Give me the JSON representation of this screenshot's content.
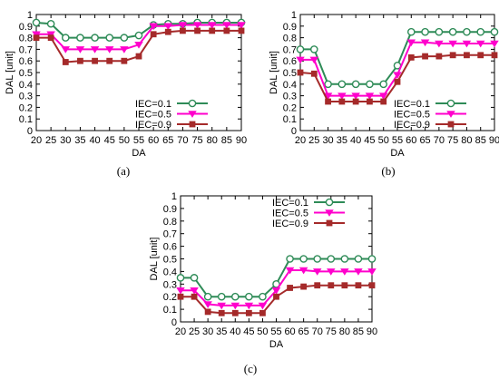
{
  "chart_data": [
    {
      "type": "line",
      "panel_label": "(a)",
      "xlabel": "DA",
      "ylabel": "DAL [unit]",
      "xlim": [
        20,
        90
      ],
      "ylim": [
        0,
        1
      ],
      "x_ticks": [
        "20",
        "25",
        "30",
        "35",
        "40",
        "45",
        "50",
        "55",
        "60",
        "65",
        "70",
        "75",
        "80",
        "85",
        "90"
      ],
      "y_ticks": [
        "0",
        "0.1",
        "0.2",
        "0.3",
        "0.4",
        "0.5",
        "0.6",
        "0.7",
        "0.8",
        "0.9",
        "1"
      ],
      "grid": false,
      "legend_position": "bottom-right",
      "x": [
        20,
        25,
        30,
        35,
        40,
        45,
        50,
        55,
        60,
        65,
        70,
        75,
        80,
        85,
        90
      ],
      "series": [
        {
          "name": "IEC=0.1",
          "color": "#2e8b57",
          "marker": "circle",
          "values": [
            0.93,
            0.92,
            0.8,
            0.8,
            0.8,
            0.8,
            0.8,
            0.82,
            0.91,
            0.92,
            0.92,
            0.93,
            0.93,
            0.93,
            0.93
          ]
        },
        {
          "name": "IEC=0.5",
          "color": "#ff00cc",
          "marker": "triangle-down",
          "values": [
            0.83,
            0.83,
            0.7,
            0.7,
            0.7,
            0.7,
            0.7,
            0.74,
            0.9,
            0.9,
            0.91,
            0.91,
            0.91,
            0.91,
            0.91
          ]
        },
        {
          "name": "IEC=0.9",
          "color": "#a52a2a",
          "marker": "square",
          "values": [
            0.8,
            0.8,
            0.59,
            0.6,
            0.6,
            0.6,
            0.6,
            0.64,
            0.83,
            0.85,
            0.86,
            0.86,
            0.86,
            0.86,
            0.86
          ]
        }
      ]
    },
    {
      "type": "line",
      "panel_label": "(b)",
      "xlabel": "DA",
      "ylabel": "DAL [unit]",
      "xlim": [
        20,
        90
      ],
      "ylim": [
        0,
        1
      ],
      "x_ticks": [
        "20",
        "25",
        "30",
        "35",
        "40",
        "45",
        "50",
        "55",
        "60",
        "65",
        "70",
        "75",
        "80",
        "85",
        "90"
      ],
      "y_ticks": [
        "0",
        "0.1",
        "0.2",
        "0.3",
        "0.4",
        "0.5",
        "0.6",
        "0.7",
        "0.8",
        "0.9",
        "1"
      ],
      "grid": false,
      "legend_position": "bottom-right",
      "x": [
        20,
        25,
        30,
        35,
        40,
        45,
        50,
        55,
        60,
        65,
        70,
        75,
        80,
        85,
        90
      ],
      "series": [
        {
          "name": "IEC=0.1",
          "color": "#2e8b57",
          "marker": "circle",
          "values": [
            0.7,
            0.7,
            0.4,
            0.4,
            0.4,
            0.4,
            0.4,
            0.56,
            0.85,
            0.85,
            0.85,
            0.85,
            0.85,
            0.85,
            0.85
          ]
        },
        {
          "name": "IEC=0.5",
          "color": "#ff00cc",
          "marker": "triangle-down",
          "values": [
            0.61,
            0.61,
            0.3,
            0.3,
            0.3,
            0.3,
            0.3,
            0.48,
            0.76,
            0.76,
            0.75,
            0.75,
            0.75,
            0.75,
            0.75
          ]
        },
        {
          "name": "IEC=0.9",
          "color": "#a52a2a",
          "marker": "square",
          "values": [
            0.5,
            0.49,
            0.25,
            0.25,
            0.25,
            0.25,
            0.25,
            0.42,
            0.63,
            0.64,
            0.64,
            0.65,
            0.65,
            0.65,
            0.65
          ]
        }
      ]
    },
    {
      "type": "line",
      "panel_label": "(c)",
      "xlabel": "DA",
      "ylabel": "DAL [unit]",
      "xlim": [
        20,
        90
      ],
      "ylim": [
        0,
        1
      ],
      "x_ticks": [
        "20",
        "25",
        "30",
        "35",
        "40",
        "45",
        "50",
        "55",
        "60",
        "65",
        "70",
        "75",
        "80",
        "85",
        "90"
      ],
      "y_ticks": [
        "0",
        "0.1",
        "0.2",
        "0.3",
        "0.4",
        "0.5",
        "0.6",
        "0.7",
        "0.8",
        "0.9",
        "1"
      ],
      "grid": false,
      "legend_position": "top-right",
      "x": [
        20,
        25,
        30,
        35,
        40,
        45,
        50,
        55,
        60,
        65,
        70,
        75,
        80,
        85,
        90
      ],
      "series": [
        {
          "name": "IEC=0.1",
          "color": "#2e8b57",
          "marker": "circle",
          "values": [
            0.35,
            0.35,
            0.2,
            0.2,
            0.2,
            0.2,
            0.2,
            0.3,
            0.5,
            0.5,
            0.5,
            0.5,
            0.5,
            0.5,
            0.5
          ]
        },
        {
          "name": "IEC=0.5",
          "color": "#ff00cc",
          "marker": "triangle-down",
          "values": [
            0.25,
            0.25,
            0.14,
            0.13,
            0.13,
            0.13,
            0.13,
            0.25,
            0.41,
            0.41,
            0.4,
            0.4,
            0.4,
            0.4,
            0.4
          ]
        },
        {
          "name": "IEC=0.9",
          "color": "#a52a2a",
          "marker": "square",
          "values": [
            0.2,
            0.2,
            0.08,
            0.07,
            0.07,
            0.07,
            0.07,
            0.2,
            0.27,
            0.28,
            0.29,
            0.29,
            0.29,
            0.29,
            0.29
          ]
        }
      ]
    }
  ]
}
